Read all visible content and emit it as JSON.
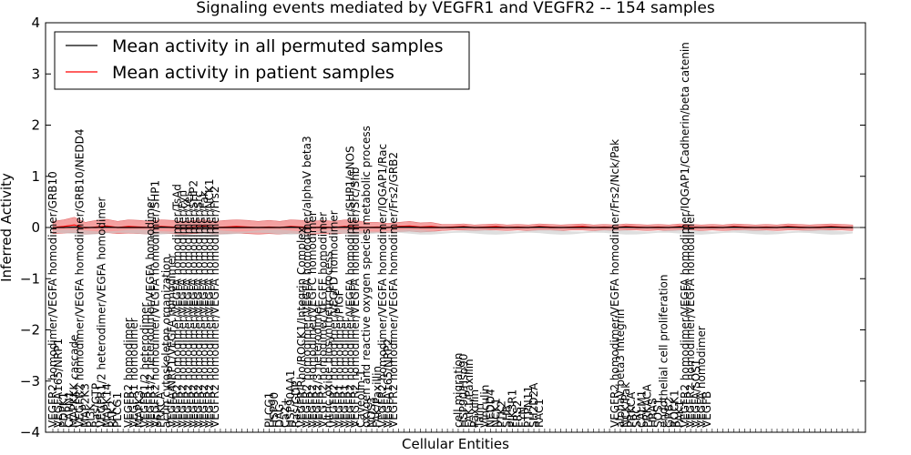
{
  "chart_data": {
    "type": "line",
    "title": "Signaling events mediated by VEGFR1 and VEGFR2 -- 154 samples",
    "xlabel": "Cellular Entities",
    "ylabel": "Inferred Activity",
    "ylim": [
      -4,
      4
    ],
    "yticks": [
      -4,
      -3,
      -2,
      -1,
      0,
      1,
      2,
      3,
      4
    ],
    "legend": [
      {
        "name": "Mean activity in all permuted samples",
        "color": "#000000"
      },
      {
        "name": "Mean activity in patient samples",
        "color": "#ff0000"
      }
    ],
    "colors": {
      "band": "#f08080",
      "band_gray": "#c8c8c8",
      "patient": "#ff0000",
      "permuted": "#000000"
    },
    "legend_position": "top-left",
    "label_groups": [
      {
        "x": 0,
        "labels": [
          "VEGFR2 homodimer/VEGFA homodimer/GRB10",
          "VEGFA165/NRP1",
          "PDPK1",
          "CAPN1",
          "MAPKKK cascade",
          "VEGFR2 homodimer/VEGFA homodimer/GRB10/NEDD4",
          "MAP2K3",
          "PI3K",
          "Ras/GTP",
          "VEGFR1/2 heterodimer/VEGFA homodimer",
          "MAPK14",
          "PAK2",
          "PLCG1"
        ]
      },
      {
        "x": 14,
        "labels": [
          "VEGFR2 homodimer",
          "VEGFR1 homodimer",
          "MAPK3",
          "VEGFR1/2 heterodimer",
          "VEGFR1/2 heterodimer/VEGFA homodimer",
          "VEGFR2 homodimer/VEGFA homodimer/SHP1",
          "PRKCA",
          "actin cytoskeleton organization",
          "VEGFA/NRP1/VEGFA homodimer",
          "VEGFR2 homodimer/VEGFA homodimer/TsAd",
          "VEGFR2 homodimer/VEGFA homodimer/Fyn",
          "VEGFR2 homodimer/VEGFA homodimer/Yes",
          "VEGFR2 homodimer/VEGFA homodimer/SHP2",
          "VEGFR2 homodimer/VEGFA homodimer/Src",
          "VEGFR2 homodimer/VEGFA homodimer/Fak",
          "VEGFR2 homodimer/VEGFA homodimer/NCK1",
          "VEGFR2 homodimer/VEGFA homodimer/Frs2"
        ]
      },
      {
        "x": 40,
        "labels": [
          "PLCG1",
          "HSP90",
          "DAG",
          "Ca2+",
          "HSP90AA1",
          "Ras/GDP",
          "VEGFR/Rho/ROCK1/Integrin Complex",
          "VEGFR2 homodimer/VEGFA homodimer/alphaV beta3",
          "VEGFR2 homodimer/VEGFC homodimer",
          "VEGFR2/3 heterodimer",
          "VEGFR2 homodimer/VEGFE homodimer",
          "nitric oxide biosynthetic process",
          "VEGFR2 homodimer/VEGFD homodimer",
          "VEGFR1 homodimer/PlGF",
          "VEGFR1 homodimer",
          "VEGFR2 homodimer/VEGFA homodimer/SHP1/eNOS",
          "VEGFR2 homodimer/VEGFA homodimer/Src/Shb",
          "Caveolin-1",
          "oxygen and reactive oxygen species metabolic process",
          "NOS3",
          "FAK/Paxillin",
          "VEGFR2 homodimer/VEGFA homodimer/IQGAP1/Rac",
          "VEGFA165/NRP2",
          "VEGFR2 homodimer/VEGFA homodimer/Frs2/GRB2"
        ]
      },
      {
        "x": 75,
        "labels": [
          "cell migration",
          "HSP90/Hsp90",
          "FAK1/Paxillin",
          "Paxillin",
          "Talin",
          "Vinculin",
          "NEDD4",
          "NCK1",
          "PTK2",
          "SHB",
          "PIK3R1",
          "FRS2",
          "FYN",
          "PTPN11",
          "SH2D2A",
          "RAC1"
        ]
      },
      {
        "x": 104,
        "labels": [
          "VEGFR2 homodimer/VEGFA homodimer/Frs2/Nck/Pak",
          "alphaV beta3 Integrin",
          "NCK/Pak",
          "PRKCA",
          "SRC",
          "CALM1",
          "PRKACA",
          "HRAS",
          "SOS1",
          "endothelial cell proliferation",
          "GRB2",
          "ROCK1",
          "PAK1",
          "VEGFR2 homodimer/VEGFA homodimer/IQGAP1/Cadherin/beta catenin",
          "VEGFR2 homodimer/VEGFA homodimer",
          "VEGFA/SOS1",
          "VEGFA homodimer",
          "VEGFB"
        ]
      }
    ],
    "x": [
      0,
      2,
      4,
      6,
      8,
      10,
      12,
      14,
      16,
      18,
      20,
      22,
      24,
      26,
      28,
      30,
      32,
      34,
      36,
      38,
      40,
      42,
      44,
      46,
      48,
      50,
      52,
      54,
      56,
      58,
      60,
      62,
      64,
      66,
      68,
      70,
      72,
      74,
      76,
      78,
      80,
      82,
      84,
      86,
      88,
      90,
      92,
      94,
      96,
      98,
      100,
      102,
      104,
      106,
      108,
      110,
      112,
      114,
      116,
      118,
      120,
      122,
      124,
      126,
      128,
      130,
      132,
      134,
      136,
      138,
      140,
      142,
      144,
      146,
      148
    ],
    "series": [
      {
        "name": "Mean activity in patient samples",
        "values": [
          0.0,
          0.02,
          0.05,
          -0.01,
          0.01,
          0.03,
          0.0,
          0.02,
          0.01,
          0.0,
          0.02,
          0.01,
          0.0,
          0.01,
          0.02,
          0.0,
          0.01,
          0.02,
          0.01,
          0.0,
          0.01,
          0.0,
          0.02,
          0.01,
          0.0,
          0.01,
          0.0,
          0.02,
          0.01,
          0.0,
          0.01,
          0.0,
          0.02,
          0.03,
          0.01,
          0.02,
          0.0,
          0.01,
          0.02,
          0.0,
          0.01,
          0.02,
          0.0,
          0.01,
          0.0,
          0.02,
          0.01,
          0.0,
          0.01,
          0.02,
          0.0,
          0.01,
          0.0,
          0.02,
          0.01,
          0.0,
          0.01,
          0.0,
          0.02,
          0.01,
          0.0,
          0.01,
          0.0,
          0.02,
          0.01,
          0.0,
          0.01,
          0.0,
          0.02,
          0.01,
          0.0,
          0.01,
          0.02,
          0.01,
          0.0
        ],
        "upper": [
          0.12,
          0.15,
          0.2,
          0.1,
          0.14,
          0.16,
          0.12,
          0.15,
          0.14,
          0.12,
          0.15,
          0.14,
          0.12,
          0.14,
          0.15,
          0.12,
          0.14,
          0.15,
          0.14,
          0.12,
          0.14,
          0.12,
          0.15,
          0.14,
          0.12,
          0.14,
          0.12,
          0.15,
          0.14,
          0.1,
          0.1,
          0.08,
          0.1,
          0.12,
          0.09,
          0.1,
          0.06,
          0.06,
          0.07,
          0.05,
          0.06,
          0.07,
          0.05,
          0.06,
          0.05,
          0.07,
          0.06,
          0.05,
          0.06,
          0.07,
          0.05,
          0.06,
          0.05,
          0.07,
          0.06,
          0.05,
          0.06,
          0.05,
          0.07,
          0.06,
          0.05,
          0.06,
          0.05,
          0.07,
          0.06,
          0.05,
          0.06,
          0.05,
          0.07,
          0.06,
          0.05,
          0.06,
          0.07,
          0.06,
          0.05
        ],
        "lower": [
          -0.12,
          -0.11,
          -0.1,
          -0.13,
          -0.12,
          -0.1,
          -0.12,
          -0.11,
          -0.12,
          -0.13,
          -0.11,
          -0.12,
          -0.13,
          -0.12,
          -0.11,
          -0.13,
          -0.12,
          -0.11,
          -0.12,
          -0.13,
          -0.12,
          -0.13,
          -0.11,
          -0.12,
          -0.13,
          -0.12,
          -0.13,
          -0.11,
          -0.12,
          -0.1,
          -0.09,
          -0.1,
          -0.08,
          -0.07,
          -0.09,
          -0.08,
          -0.06,
          -0.05,
          -0.05,
          -0.06,
          -0.05,
          -0.05,
          -0.06,
          -0.05,
          -0.06,
          -0.05,
          -0.05,
          -0.06,
          -0.05,
          -0.05,
          -0.06,
          -0.05,
          -0.06,
          -0.05,
          -0.05,
          -0.06,
          -0.05,
          -0.06,
          -0.05,
          -0.05,
          -0.06,
          -0.05,
          -0.06,
          -0.05,
          -0.05,
          -0.06,
          -0.05,
          -0.06,
          -0.05,
          -0.05,
          -0.06,
          -0.05,
          -0.05,
          -0.05,
          -0.06
        ]
      },
      {
        "name": "Mean activity in all permuted samples",
        "values": [
          0.0,
          0.0,
          0.01,
          0.0,
          0.0,
          0.01,
          0.0,
          0.0,
          0.0,
          0.0,
          0.01,
          0.0,
          0.0,
          0.0,
          0.01,
          0.0,
          0.0,
          0.0,
          0.0,
          0.0,
          0.0,
          0.0,
          0.01,
          0.0,
          0.0,
          0.0,
          0.0,
          0.01,
          0.0,
          0.0,
          0.0,
          0.0,
          0.01,
          0.01,
          0.0,
          0.0,
          0.0,
          0.0,
          0.01,
          0.0,
          0.0,
          0.0,
          0.0,
          0.0,
          0.0,
          0.01,
          0.0,
          0.0,
          0.0,
          0.0,
          0.0,
          0.0,
          0.0,
          0.01,
          0.0,
          0.0,
          0.0,
          0.0,
          0.01,
          0.0,
          0.0,
          0.0,
          0.0,
          0.01,
          0.0,
          0.0,
          0.0,
          0.0,
          0.01,
          0.0,
          0.0,
          0.0,
          0.01,
          0.0,
          0.0
        ]
      }
    ],
    "xcount": 150
  }
}
